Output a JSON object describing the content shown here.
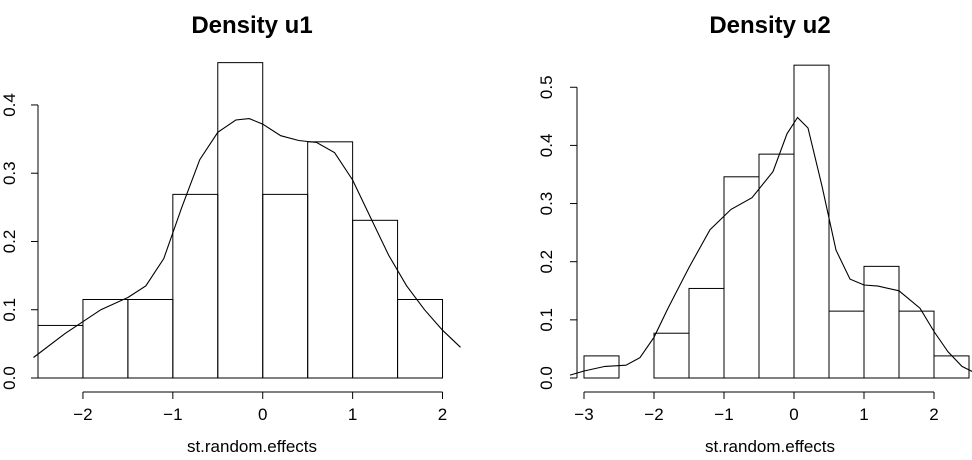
{
  "chart_data": [
    {
      "type": "histogram",
      "title": "Density u1",
      "xlabel": "st.random.effects",
      "ylabel": "",
      "xlim": [
        -2.5,
        2.15
      ],
      "ylim": [
        0,
        0.46
      ],
      "x_ticks": [
        -2,
        -1,
        0,
        1,
        2
      ],
      "y_ticks": [
        0.0,
        0.1,
        0.2,
        0.3,
        0.4
      ],
      "x_tick_labels": [
        "−2",
        "−1",
        "0",
        "1",
        "2"
      ],
      "y_tick_labels": [
        "0.0",
        "0.1",
        "0.2",
        "0.3",
        "0.4"
      ],
      "grid": false,
      "bins": [
        {
          "x0": -2.5,
          "x1": -2.0,
          "density": 0.077
        },
        {
          "x0": -2.0,
          "x1": -1.5,
          "density": 0.115
        },
        {
          "x0": -1.5,
          "x1": -1.0,
          "density": 0.115
        },
        {
          "x0": -1.0,
          "x1": -0.5,
          "density": 0.269
        },
        {
          "x0": -0.5,
          "x1": 0.0,
          "density": 0.462
        },
        {
          "x0": 0.0,
          "x1": 0.5,
          "density": 0.269
        },
        {
          "x0": 0.5,
          "x1": 1.0,
          "density": 0.346
        },
        {
          "x0": 1.0,
          "x1": 1.5,
          "density": 0.231
        },
        {
          "x0": 1.5,
          "x1": 2.0,
          "density": 0.115
        }
      ],
      "density_curve": {
        "x": [
          -2.55,
          -2.2,
          -1.8,
          -1.5,
          -1.3,
          -1.1,
          -0.9,
          -0.7,
          -0.5,
          -0.3,
          -0.15,
          0.0,
          0.2,
          0.4,
          0.6,
          0.8,
          1.0,
          1.2,
          1.4,
          1.6,
          1.8,
          2.0,
          2.2
        ],
        "y": [
          0.03,
          0.065,
          0.1,
          0.118,
          0.135,
          0.175,
          0.25,
          0.32,
          0.36,
          0.378,
          0.38,
          0.372,
          0.355,
          0.348,
          0.345,
          0.33,
          0.29,
          0.235,
          0.18,
          0.135,
          0.1,
          0.07,
          0.045
        ]
      }
    },
    {
      "type": "histogram",
      "title": "Density u2",
      "xlabel": "st.random.effects",
      "ylabel": "",
      "xlim": [
        -3.1,
        2.5
      ],
      "ylim": [
        0,
        0.54
      ],
      "x_ticks": [
        -3,
        -2,
        -1,
        0,
        1,
        2
      ],
      "y_ticks": [
        0.0,
        0.1,
        0.2,
        0.3,
        0.4,
        0.5
      ],
      "x_tick_labels": [
        "−3",
        "−2",
        "−1",
        "0",
        "1",
        "2"
      ],
      "y_tick_labels": [
        "0.0",
        "0.1",
        "0.2",
        "0.3",
        "0.4",
        "0.5"
      ],
      "grid": false,
      "bins": [
        {
          "x0": -3.0,
          "x1": -2.5,
          "density": 0.038
        },
        {
          "x0": -2.5,
          "x1": -2.0,
          "density": 0.0
        },
        {
          "x0": -2.0,
          "x1": -1.5,
          "density": 0.077
        },
        {
          "x0": -1.5,
          "x1": -1.0,
          "density": 0.154
        },
        {
          "x0": -1.0,
          "x1": -0.5,
          "density": 0.346
        },
        {
          "x0": -0.5,
          "x1": 0.0,
          "density": 0.385
        },
        {
          "x0": 0.0,
          "x1": 0.5,
          "density": 0.538
        },
        {
          "x0": 0.5,
          "x1": 1.0,
          "density": 0.115
        },
        {
          "x0": 1.0,
          "x1": 1.5,
          "density": 0.192
        },
        {
          "x0": 1.5,
          "x1": 2.0,
          "density": 0.115
        },
        {
          "x0": 2.0,
          "x1": 2.5,
          "density": 0.038
        }
      ],
      "density_curve": {
        "x": [
          -3.2,
          -3.0,
          -2.7,
          -2.4,
          -2.2,
          -2.0,
          -1.8,
          -1.5,
          -1.2,
          -0.9,
          -0.6,
          -0.3,
          -0.1,
          0.05,
          0.2,
          0.4,
          0.6,
          0.8,
          1.0,
          1.2,
          1.5,
          1.8,
          2.0,
          2.2,
          2.4,
          2.6
        ],
        "y": [
          0.005,
          0.012,
          0.02,
          0.022,
          0.035,
          0.07,
          0.12,
          0.19,
          0.255,
          0.29,
          0.31,
          0.355,
          0.42,
          0.448,
          0.43,
          0.33,
          0.22,
          0.17,
          0.16,
          0.158,
          0.15,
          0.12,
          0.08,
          0.045,
          0.02,
          0.008
        ]
      }
    }
  ]
}
